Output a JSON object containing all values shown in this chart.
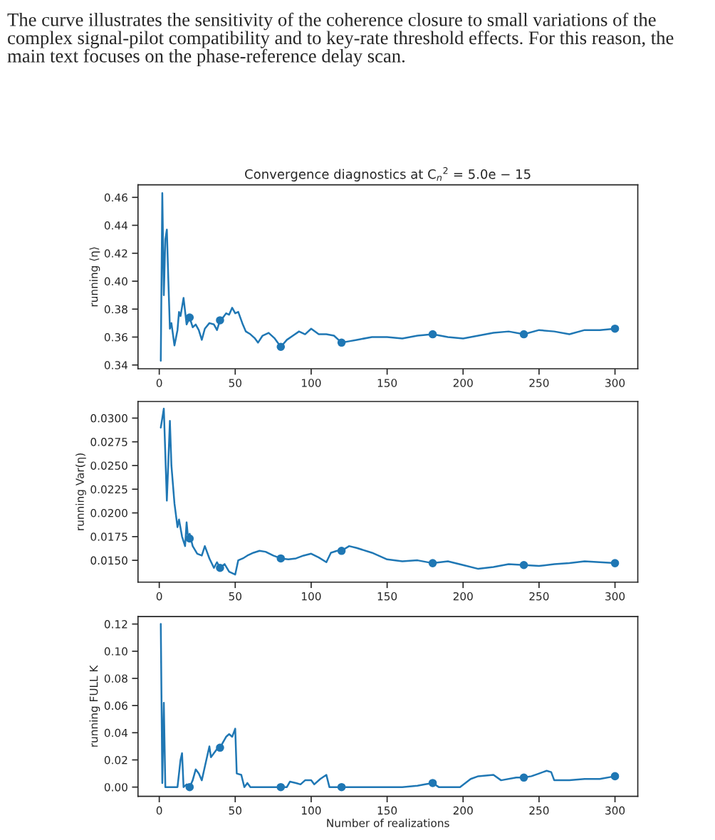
{
  "chart_data": [
    {
      "type": "line",
      "title": "Convergence diagnostics at C$_{n}$$^{2}$ = 5.0e − 15",
      "ylabel": "running ⟨η⟩",
      "annotations": [
        "The curve illustrates the sensitivity of the coherence closure to small variations of the complex signal-pilot compatibility and to key-rate threshold effects. For this reason, the main text focuses on the phase-reference delay scan."
      ],
      "xlim": [
        -14,
        315
      ],
      "xticks": [
        0,
        50,
        100,
        150,
        200,
        250,
        300
      ],
      "ylim": [
        0.3373,
        0.469
      ],
      "yticks": [
        0.34,
        0.36,
        0.38,
        {
          "value": 0.4,
          "label": "0.40"
        },
        0.42,
        0.44,
        0.46
      ],
      "grid": false,
      "legend": false,
      "series": [
        {
          "type": "line",
          "color": "#1f77b4",
          "marker": "none",
          "x": [
            1,
            2,
            3,
            4,
            5,
            6,
            7,
            8,
            10,
            12,
            13,
            14,
            16,
            18,
            20,
            22,
            24,
            26,
            28,
            30,
            33,
            36,
            38,
            40,
            42,
            44,
            46,
            48,
            50,
            52,
            55,
            57,
            60,
            63,
            65,
            68,
            72,
            76,
            80,
            84,
            88,
            92,
            96,
            100,
            105,
            110,
            115,
            118,
            120,
            125,
            130,
            140,
            150,
            160,
            170,
            180,
            190,
            200,
            210,
            220,
            230,
            240,
            250,
            260,
            270,
            280,
            290,
            300
          ],
          "values": [
            0.343,
            0.463,
            0.39,
            0.43,
            0.437,
            0.4,
            0.366,
            0.37,
            0.354,
            0.365,
            0.378,
            0.375,
            0.388,
            0.369,
            0.374,
            0.367,
            0.369,
            0.365,
            0.358,
            0.366,
            0.37,
            0.369,
            0.365,
            0.372,
            0.374,
            0.377,
            0.376,
            0.381,
            0.377,
            0.378,
            0.369,
            0.364,
            0.362,
            0.359,
            0.356,
            0.361,
            0.363,
            0.359,
            0.353,
            0.358,
            0.361,
            0.364,
            0.362,
            0.366,
            0.362,
            0.362,
            0.361,
            0.358,
            0.356,
            0.357,
            0.358,
            0.36,
            0.36,
            0.359,
            0.361,
            0.362,
            0.36,
            0.359,
            0.361,
            0.363,
            0.364,
            0.362,
            0.365,
            0.364,
            0.362,
            0.365,
            0.365,
            0.366
          ]
        },
        {
          "type": "scatter",
          "color": "#1f77b4",
          "marker": "circle",
          "x": [
            20,
            40,
            80,
            120,
            180,
            240,
            300
          ],
          "values": [
            0.374,
            0.372,
            0.353,
            0.356,
            0.362,
            0.362,
            0.366
          ]
        }
      ]
    },
    {
      "type": "line",
      "ylabel": "running Var(η)",
      "xlim": [
        -14,
        315
      ],
      "xticks": [
        0,
        50,
        100,
        150,
        200,
        250,
        300
      ],
      "ylim": [
        0.0127,
        0.03175
      ],
      "yticks": [
        {
          "value": 0.015,
          "label": "0.0150"
        },
        {
          "value": 0.0175,
          "label": "0.0175"
        },
        {
          "value": 0.02,
          "label": "0.0200"
        },
        {
          "value": 0.0225,
          "label": "0.0225"
        },
        {
          "value": 0.025,
          "label": "0.0250"
        },
        {
          "value": 0.0275,
          "label": "0.0275"
        },
        {
          "value": 0.03,
          "label": "0.0300"
        }
      ],
      "grid": false,
      "legend": false,
      "series": [
        {
          "type": "line",
          "color": "#1f77b4",
          "marker": "none",
          "x": [
            1,
            3,
            5,
            7,
            8,
            10,
            12,
            13,
            15,
            17,
            18,
            19,
            20,
            22,
            25,
            28,
            30,
            33,
            36,
            38,
            40,
            43,
            46,
            50,
            52,
            55,
            58,
            62,
            66,
            70,
            75,
            80,
            85,
            90,
            95,
            100,
            105,
            110,
            113,
            117,
            120,
            125,
            130,
            140,
            150,
            160,
            170,
            180,
            190,
            200,
            210,
            220,
            230,
            240,
            250,
            260,
            270,
            280,
            290,
            300
          ],
          "values": [
            0.029,
            0.031,
            0.0213,
            0.0297,
            0.025,
            0.021,
            0.0185,
            0.0193,
            0.0175,
            0.0165,
            0.019,
            0.0173,
            0.0178,
            0.0165,
            0.0157,
            0.0155,
            0.0165,
            0.0152,
            0.0142,
            0.0148,
            0.0142,
            0.0146,
            0.0138,
            0.0135,
            0.015,
            0.0152,
            0.0155,
            0.0158,
            0.016,
            0.0159,
            0.0155,
            0.0152,
            0.0151,
            0.0152,
            0.0155,
            0.0157,
            0.0153,
            0.0148,
            0.0158,
            0.016,
            0.016,
            0.0165,
            0.0163,
            0.0158,
            0.0151,
            0.0149,
            0.015,
            0.0147,
            0.0149,
            0.0145,
            0.0141,
            0.0143,
            0.0146,
            0.0145,
            0.0144,
            0.0146,
            0.0147,
            0.0149,
            0.0148,
            0.0147
          ]
        },
        {
          "type": "scatter",
          "color": "#1f77b4",
          "marker": "circle",
          "x": [
            20,
            40,
            80,
            120,
            180,
            240,
            300
          ],
          "values": [
            0.0173,
            0.0142,
            0.0152,
            0.016,
            0.0147,
            0.0145,
            0.0147
          ]
        }
      ]
    },
    {
      "type": "line",
      "ylabel": "running FULL K",
      "xlabel": "Number of realizations",
      "xlim": [
        -14,
        315
      ],
      "xticks": [
        0,
        50,
        100,
        150,
        200,
        250,
        300
      ],
      "ylim": [
        -0.0068,
        0.1255
      ],
      "yticks": [
        {
          "value": 0,
          "label": "0.00"
        },
        {
          "value": 0.02,
          "label": "0.02"
        },
        {
          "value": 0.04,
          "label": "0.04"
        },
        {
          "value": 0.06,
          "label": "0.06"
        },
        {
          "value": 0.08,
          "label": "0.08"
        },
        {
          "value": 0.1,
          "label": "0.10"
        },
        {
          "value": 0.12,
          "label": "0.12"
        }
      ],
      "grid": false,
      "legend": false,
      "series": [
        {
          "type": "line",
          "color": "#1f77b4",
          "marker": "none",
          "x": [
            1,
            2,
            3,
            4,
            12,
            14,
            15,
            16,
            18,
            20,
            22,
            24,
            26,
            28,
            30,
            33,
            34,
            36,
            38,
            40,
            42,
            44,
            46,
            48,
            50,
            51,
            54,
            56,
            58,
            60,
            80,
            84,
            86,
            90,
            93,
            96,
            100,
            102,
            106,
            110,
            112,
            120,
            150,
            160,
            170,
            175,
            180,
            184,
            198,
            205,
            210,
            220,
            225,
            235,
            240,
            245,
            250,
            255,
            258,
            260,
            270,
            280,
            290,
            300
          ],
          "values": [
            0.12,
            0.003,
            0.062,
            0.0,
            0.0,
            0.02,
            0.025,
            0.0,
            0.002,
            0.0,
            0.005,
            0.013,
            0.01,
            0.005,
            0.015,
            0.03,
            0.022,
            0.025,
            0.028,
            0.029,
            0.033,
            0.037,
            0.039,
            0.037,
            0.043,
            0.01,
            0.009,
            0.0,
            0.003,
            0.0,
            0.0,
            0.0,
            0.004,
            0.003,
            0.002,
            0.005,
            0.005,
            0.002,
            0.006,
            0.009,
            0.0,
            0.0,
            0.0,
            0.0,
            0.001,
            0.002,
            0.003,
            0.0,
            0.0,
            0.006,
            0.008,
            0.009,
            0.005,
            0.007,
            0.007,
            0.008,
            0.01,
            0.012,
            0.011,
            0.005,
            0.005,
            0.006,
            0.006,
            0.008
          ]
        },
        {
          "type": "scatter",
          "color": "#1f77b4",
          "marker": "circle",
          "x": [
            20,
            40,
            80,
            120,
            180,
            240,
            300
          ],
          "values": [
            0.0,
            0.029,
            0.0,
            0.0,
            0.003,
            0.007,
            0.008
          ]
        }
      ]
    }
  ]
}
